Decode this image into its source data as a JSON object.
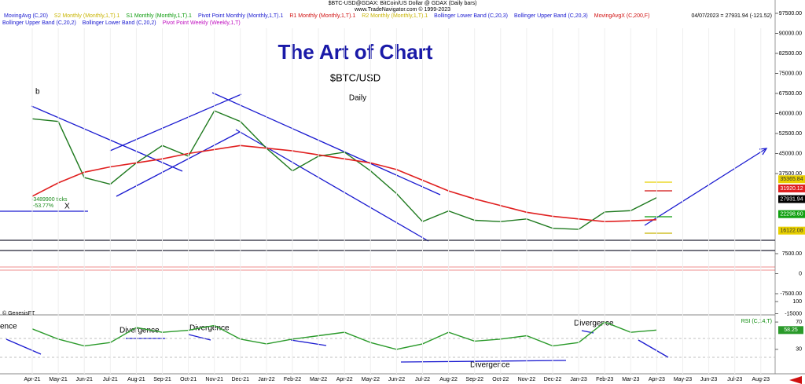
{
  "header": {
    "symbol": "$BTC-USD@GDAX: BitCoin/US Dollar @ GDAX (Daily bars)",
    "copyright": "www.TradeNavigator.com © 1999-2023",
    "last": "04/07/2023 = 27931.94 (-121.52)",
    "indicators": [
      {
        "label": "MovingAvg (C,20)",
        "color": "#1a1ad0"
      },
      {
        "label": "S2 Monthly (Monthly,1,T).1",
        "color": "#c8b400"
      },
      {
        "label": "S1 Monthly (Monthly,1,T).1",
        "color": "#0a9a0a"
      },
      {
        "label": "Pivot Point Monthly (Monthly,1,T).1",
        "color": "#1a1ad0"
      },
      {
        "label": "R1 Monthly (Monthly,1,T).1",
        "color": "#d01010"
      },
      {
        "label": "R2 Monthly (Monthly,1,T).1",
        "color": "#c8b400"
      },
      {
        "label": "Bollinger Lower Band (C,20,3)",
        "color": "#1a1ad0"
      },
      {
        "label": "Bollinger Upper Band (C,20,3)",
        "color": "#1a1ad0"
      },
      {
        "label": "MovingAvgX (C,200,F)",
        "color": "#d01010"
      }
    ],
    "indicators2": [
      {
        "label": "Bollinger Upper Band (C,20,2)",
        "color": "#1a1ad0"
      },
      {
        "label": "Bollinger Lower Band (C,20,2)",
        "color": "#1a1ad0"
      },
      {
        "label": "Pivot Point Weekly (Weekly,1,T)",
        "color": "#c010c0"
      }
    ]
  },
  "chart_data": [
    {
      "type": "line",
      "title": "The Art of Chart",
      "subtitle": "$BTC/USD",
      "period": "Daily",
      "categories": [
        "Apr-21",
        "May-21",
        "Jun-21",
        "Jul-21",
        "Aug-21",
        "Sep-21",
        "Oct-21",
        "Nov-21",
        "Dec-21",
        "Jan-22",
        "Feb-22",
        "Mar-22",
        "Apr-22",
        "May-22",
        "Jun-22",
        "Jul-22",
        "Aug-22",
        "Sep-22",
        "Oct-22",
        "Nov-22",
        "Dec-22",
        "Jan-23",
        "Feb-23",
        "Mar-23",
        "Apr-23",
        "May-23",
        "Jun-23",
        "Jul-23",
        "Aug-23"
      ],
      "series": [
        {
          "name": "$BTC-USD",
          "color": "#1f7a1f",
          "values": [
            58000,
            57000,
            36000,
            33500,
            41500,
            48000,
            44000,
            61000,
            57000,
            47000,
            38500,
            44000,
            45500,
            38500,
            30000,
            19500,
            23500,
            20000,
            19500,
            20500,
            17000,
            16600,
            23100,
            23600,
            28500,
            null,
            null,
            null,
            null
          ]
        },
        {
          "name": "MovingAvgX (C,200,F)",
          "color": "#e02020",
          "values": [
            29000,
            34000,
            38000,
            40000,
            41500,
            43000,
            45000,
            46500,
            48000,
            47000,
            46000,
            44500,
            43000,
            41500,
            39000,
            35000,
            31000,
            28000,
            25500,
            23000,
            21500,
            20500,
            19500,
            19800,
            20200,
            null,
            null,
            null,
            null
          ]
        }
      ],
      "ylim": [
        -17500,
        100000
      ],
      "yticks": [
        {
          "value": 97500,
          "label": "97500.00"
        },
        {
          "value": 90000,
          "label": "90000.00"
        },
        {
          "value": 82500,
          "label": "82500.00"
        },
        {
          "value": 75000,
          "label": "75000.00"
        },
        {
          "value": 67500,
          "label": "67500.00"
        },
        {
          "value": 60000,
          "label": "60000.00"
        },
        {
          "value": 52500,
          "label": "52500.00"
        },
        {
          "value": 45000,
          "label": "45000.00"
        },
        {
          "value": 37500,
          "label": "37500.00"
        },
        {
          "value": 7500,
          "label": "7500.00"
        },
        0,
        {
          "value": -7500,
          "label": "-7500.00"
        },
        {
          "value": -15000,
          "label": "-15000"
        }
      ],
      "price_tags": [
        {
          "value": 35365.84,
          "label": "35365.84",
          "color": "#e8d000"
        },
        {
          "value": 31920.12,
          "label": "31920.12",
          "color": "#e02020"
        },
        {
          "value": 27931.94,
          "label": "27931.94",
          "color": "#000000"
        },
        {
          "value": 22298.6,
          "label": "22298.60",
          "color": "#10a010"
        },
        {
          "value": 16122.08,
          "label": "16122.08",
          "color": "#e8d000"
        }
      ],
      "annotations": [
        "b",
        "X",
        "-3489900 ticks",
        "-53.77%",
        "© GenesisFT"
      ]
    },
    {
      "type": "line",
      "title": "RSI (C,14,T)",
      "series": [
        {
          "name": "RSI",
          "color": "#2a9a2a",
          "values": [
            60,
            45,
            35,
            40,
            62,
            55,
            58,
            65,
            45,
            38,
            45,
            50,
            55,
            40,
            30,
            38,
            55,
            42,
            45,
            50,
            35,
            40,
            70,
            55,
            58.25,
            null,
            null,
            null,
            null
          ],
          "value_labels": [
            null,
            null,
            null,
            null,
            null,
            null,
            null,
            null,
            null,
            null,
            null,
            null,
            null,
            null,
            null,
            null,
            null,
            null,
            null,
            null,
            null,
            null,
            null,
            null,
            "58.25",
            null,
            null,
            null,
            null
          ]
        }
      ],
      "ylim": [
        0,
        100
      ],
      "yticks": [
        30,
        70,
        100
      ],
      "annotations": [
        "ence",
        "Divergence",
        "Divergence",
        "Divergence",
        "Divergence"
      ]
    }
  ]
}
